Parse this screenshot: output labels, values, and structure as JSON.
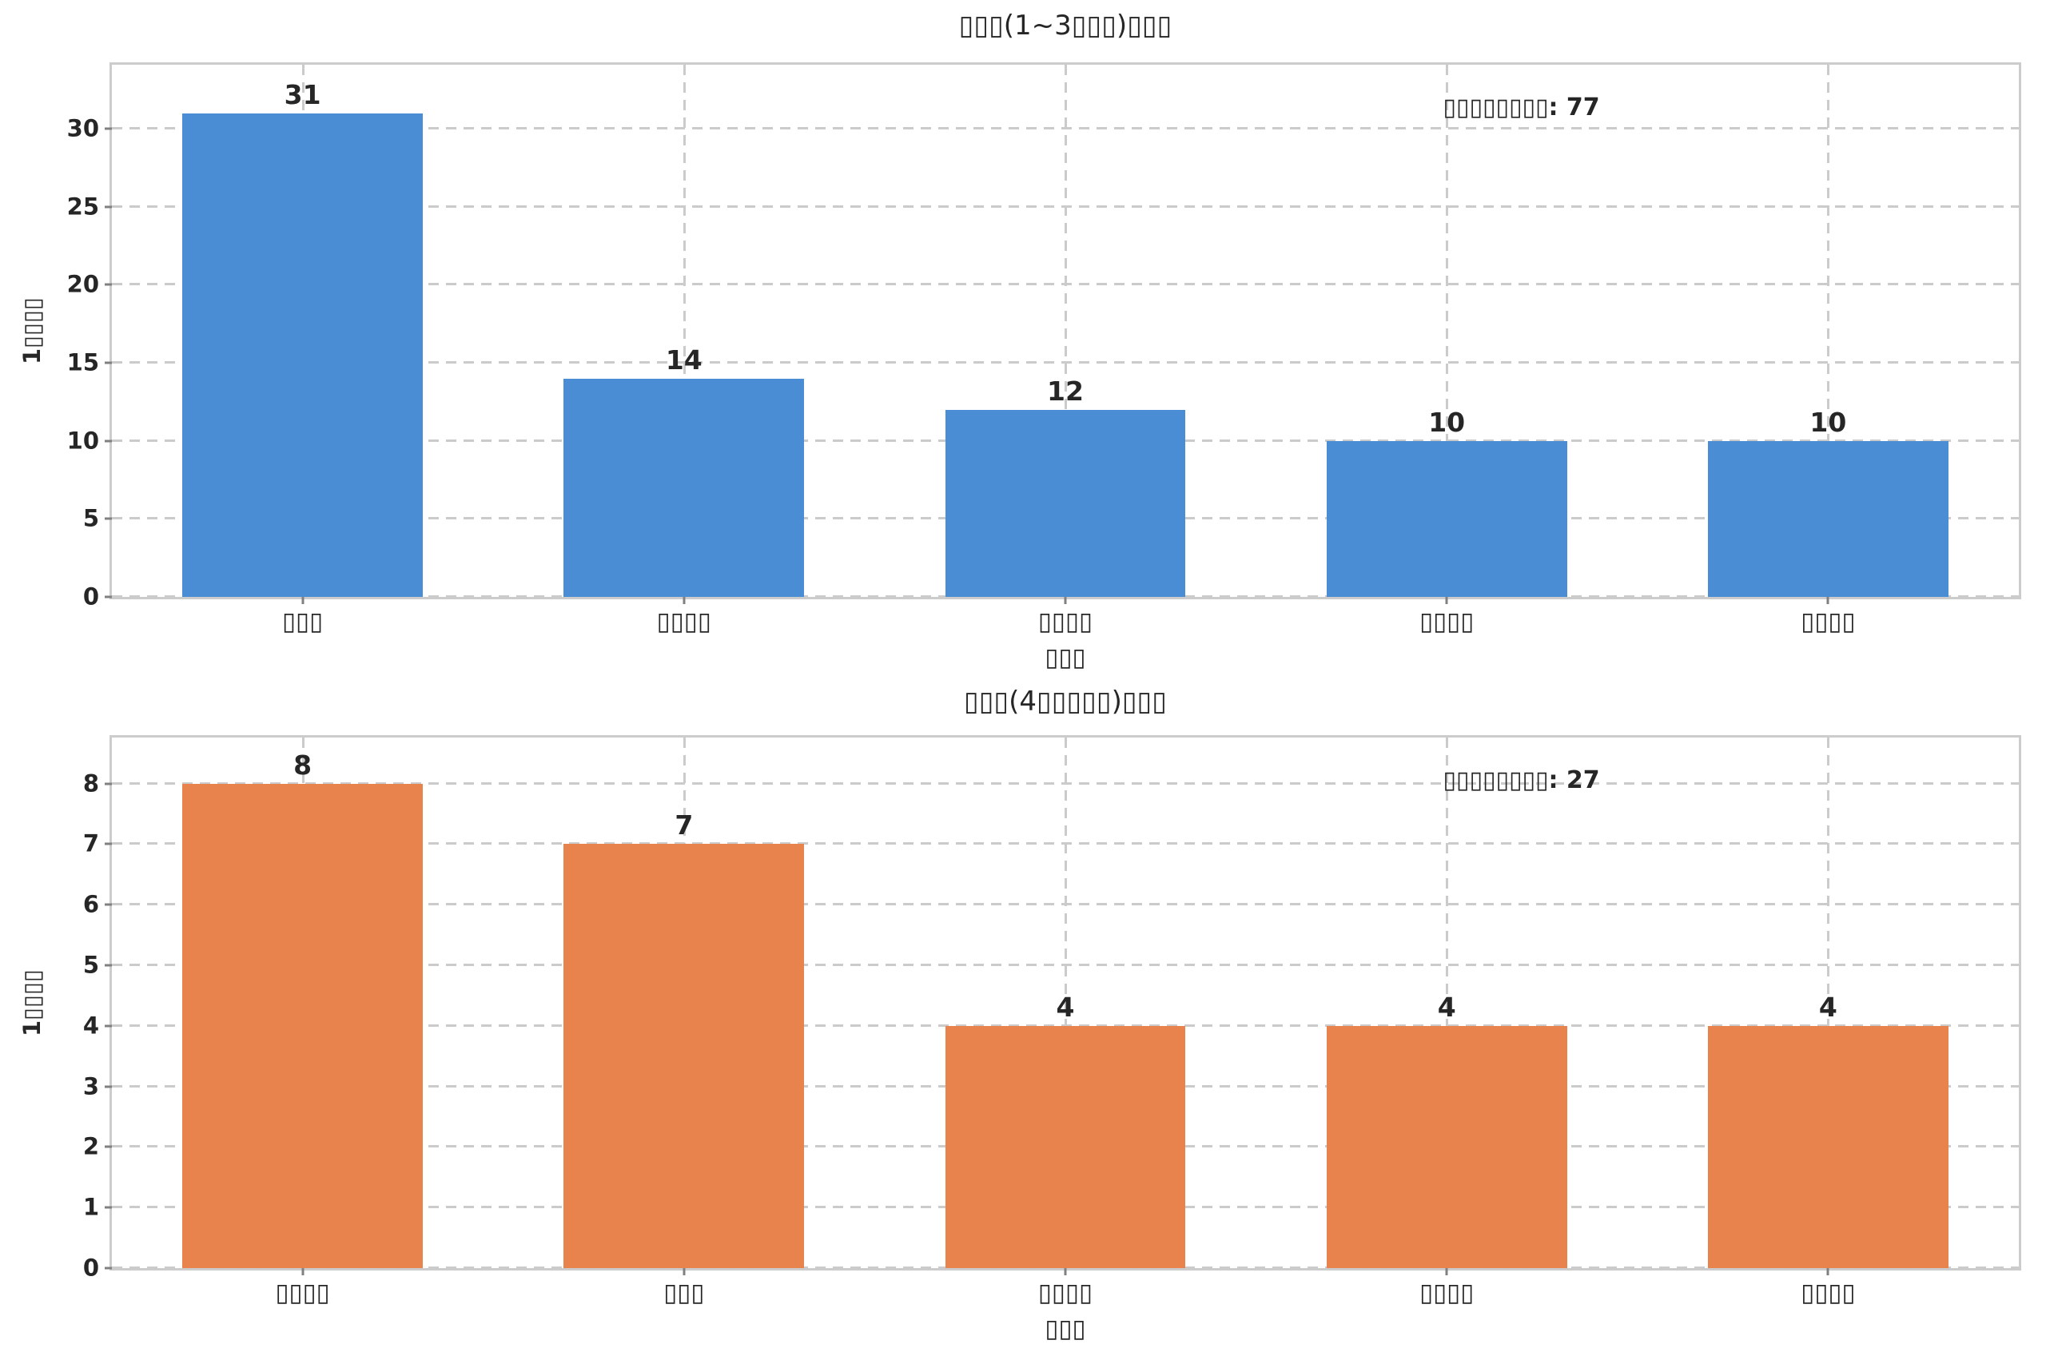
{
  "figure": {
    "background": "#ffffff",
    "note_text_rendering": "CJK glyphs rendered as hollow tofu boxes"
  },
  "style": {
    "text_color": "#262626",
    "grid_color": "#cbcbcb",
    "spine_color": "#cccccc",
    "tick_mark_color": "#808080",
    "bar_blue": "#4a8dd5",
    "bar_orange": "#e8834e"
  },
  "chart_data": [
    {
      "type": "bar",
      "title": "▯▯▯(1~3▯▯▯)▯▯▯",
      "categories": [
        "▯▯▯",
        "▯▯▯▯",
        "▯▯▯▯",
        "▯▯▯▯",
        "▯▯▯▯"
      ],
      "values": [
        31,
        14,
        12,
        10,
        10
      ],
      "annotation": "▯▯▯▯▯▯▯▯: 77",
      "annotation_total": 77,
      "xlabel": "▯▯▯",
      "ylabel": "1▯▯▯▯",
      "yticks": [
        0,
        5,
        10,
        15,
        20,
        25,
        30
      ],
      "ylim": [
        0,
        34.1
      ],
      "bar_color": "#4a8dd5",
      "grid": "dashed",
      "legend": "none"
    },
    {
      "type": "bar",
      "title": "▯▯▯(4▯▯▯▯▯)▯▯▯",
      "categories": [
        "▯▯▯▯",
        "▯▯▯",
        "▯▯▯▯",
        "▯▯▯▯",
        "▯▯▯▯"
      ],
      "values": [
        8,
        7,
        4,
        4,
        4
      ],
      "annotation": "▯▯▯▯▯▯▯▯: 27",
      "annotation_total": 27,
      "xlabel": "▯▯▯",
      "ylabel": "1▯▯▯▯",
      "yticks": [
        0,
        1,
        2,
        3,
        4,
        5,
        6,
        7,
        8
      ],
      "ylim": [
        0,
        8.76
      ],
      "bar_color": "#e8834e",
      "grid": "dashed",
      "legend": "none"
    }
  ]
}
